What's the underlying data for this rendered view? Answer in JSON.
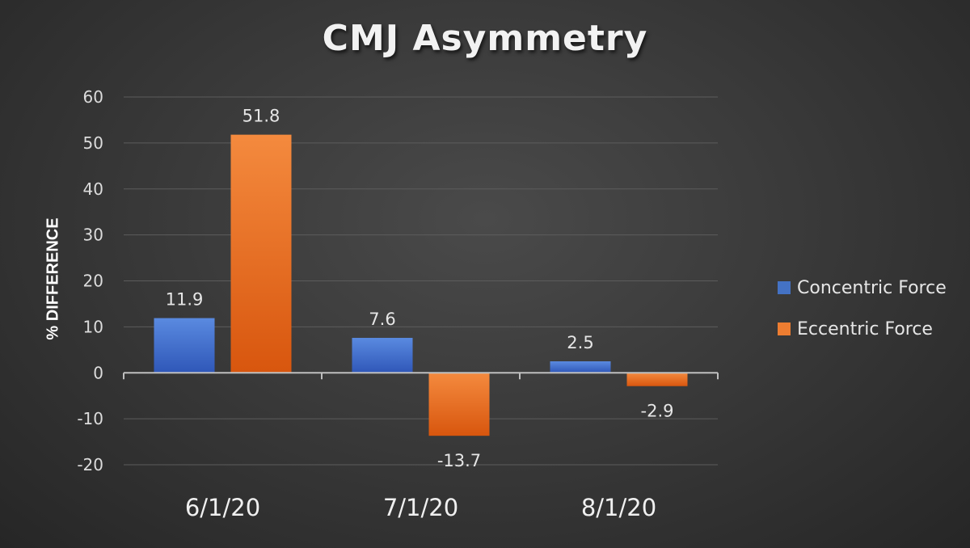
{
  "chart_data": {
    "type": "bar",
    "title": "CMJ Asymmetry",
    "ylabel": "% DIFFERENCE",
    "xlabel": "",
    "categories": [
      "6/1/20",
      "7/1/20",
      "8/1/20"
    ],
    "series": [
      {
        "name": "Concentric Force",
        "values": [
          11.9,
          7.6,
          2.5
        ],
        "color": "#4472c4",
        "labels": [
          "11.9",
          "7.6",
          "2.5"
        ]
      },
      {
        "name": "Eccentric Force",
        "values": [
          51.8,
          -13.7,
          -2.9
        ],
        "color": "#ed7d31",
        "labels": [
          "51.8",
          "-13.7",
          "-2.9"
        ]
      }
    ],
    "ylim": [
      -20,
      60
    ],
    "yticks": [
      "60",
      "50",
      "40",
      "30",
      "20",
      "10",
      "0",
      "-10",
      "-20"
    ],
    "grid": true,
    "legend_position": "right"
  }
}
